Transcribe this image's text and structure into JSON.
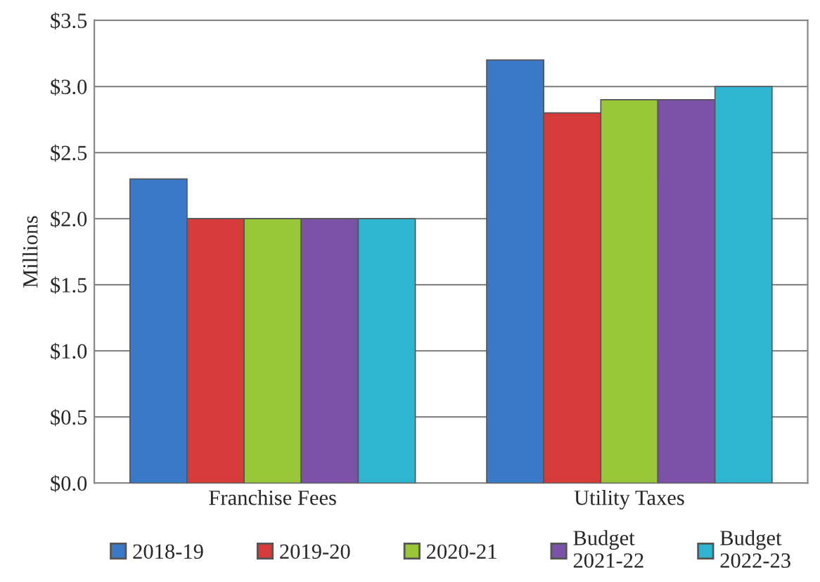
{
  "chart_data": {
    "type": "bar",
    "ylabel": "Millions",
    "categories": [
      "Franchise Fees",
      "Utility Taxes"
    ],
    "series": [
      {
        "name": "2018-19",
        "color": "#3a78c8",
        "values": [
          2.3,
          3.2
        ]
      },
      {
        "name": "2019-20",
        "color": "#d63b3b",
        "values": [
          2.0,
          2.8
        ]
      },
      {
        "name": "2020-21",
        "color": "#9ac63a",
        "values": [
          2.0,
          2.9
        ]
      },
      {
        "name": "Budget\n2021-22",
        "color": "#7b52a8",
        "values": [
          2.0,
          2.9
        ]
      },
      {
        "name": "Budget\n2022-23",
        "color": "#2fb5d0",
        "values": [
          2.0,
          3.0
        ]
      }
    ],
    "ylim": [
      0,
      3.5
    ],
    "yticks": [
      {
        "value": 0,
        "label": "$0.0"
      },
      {
        "value": 0.5,
        "label": "$0.5"
      },
      {
        "value": 1.0,
        "label": "$1.0"
      },
      {
        "value": 1.5,
        "label": "$1.5"
      },
      {
        "value": 2.0,
        "label": "$2.0"
      },
      {
        "value": 2.5,
        "label": "$2.5"
      },
      {
        "value": 3.0,
        "label": "$3.0"
      },
      {
        "value": 3.5,
        "label": "$3.5"
      }
    ],
    "grid": "y",
    "legend": "bottom"
  }
}
